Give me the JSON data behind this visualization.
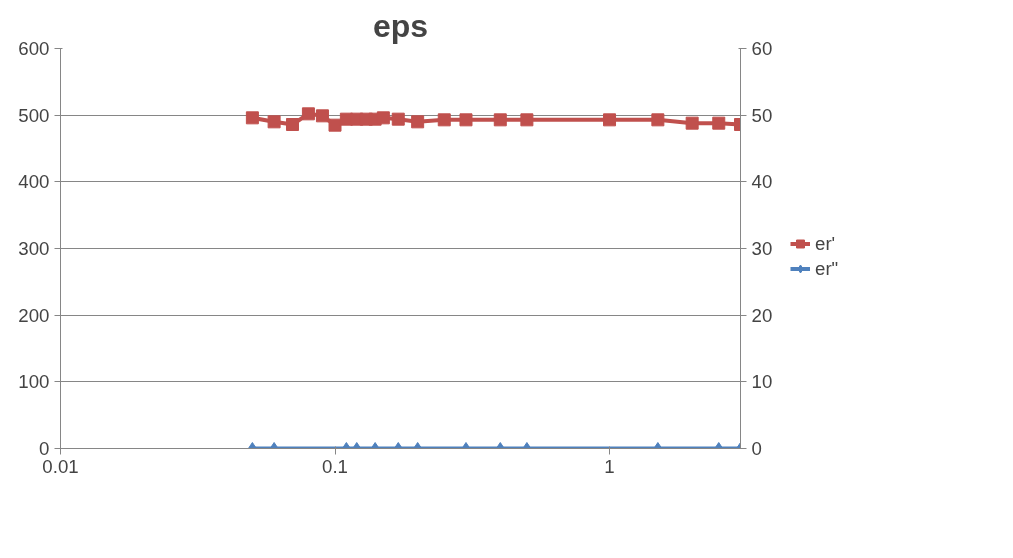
{
  "chart_data": {
    "type": "line",
    "title": "eps",
    "log": "x",
    "grid": "y",
    "legend": "right",
    "xlim": [
      0.01,
      3
    ],
    "xticks": [
      0.01,
      0.1,
      1
    ],
    "ylim": [
      0,
      600
    ],
    "yticks": [
      0,
      100,
      200,
      300,
      400,
      500,
      600
    ],
    "y2lim": [
      0,
      60
    ],
    "y2ticks": [
      0,
      10,
      20,
      30,
      40,
      50,
      60
    ],
    "series": [
      {
        "name": "er'",
        "color": "#c0504d",
        "marker": "square",
        "axis": "y2",
        "x": [
          0.05,
          0.06,
          0.07,
          0.08,
          0.09,
          0.1,
          0.11,
          0.12,
          0.13,
          0.14,
          0.15,
          0.17,
          0.2,
          0.25,
          0.3,
          0.4,
          0.5,
          1,
          1.5,
          2,
          2.5,
          3
        ],
        "values": [
          49.6,
          49.0,
          48.6,
          50.2,
          49.9,
          48.5,
          49.4,
          49.4,
          49.4,
          49.4,
          49.6,
          49.4,
          49.0,
          49.3,
          49.3,
          49.3,
          49.3,
          49.3,
          49.3,
          48.8,
          48.8,
          48.6
        ]
      },
      {
        "name": "er\"",
        "color": "#4f81bd",
        "marker": "diamond",
        "x": [
          0.05,
          0.06,
          0.11,
          0.12,
          0.14,
          0.17,
          0.2,
          0.3,
          0.4,
          0.5,
          1.5,
          2.5,
          3
        ],
        "values": [
          0,
          0,
          0,
          0,
          0,
          0,
          0,
          0,
          0,
          0,
          0,
          0,
          0
        ]
      }
    ]
  }
}
